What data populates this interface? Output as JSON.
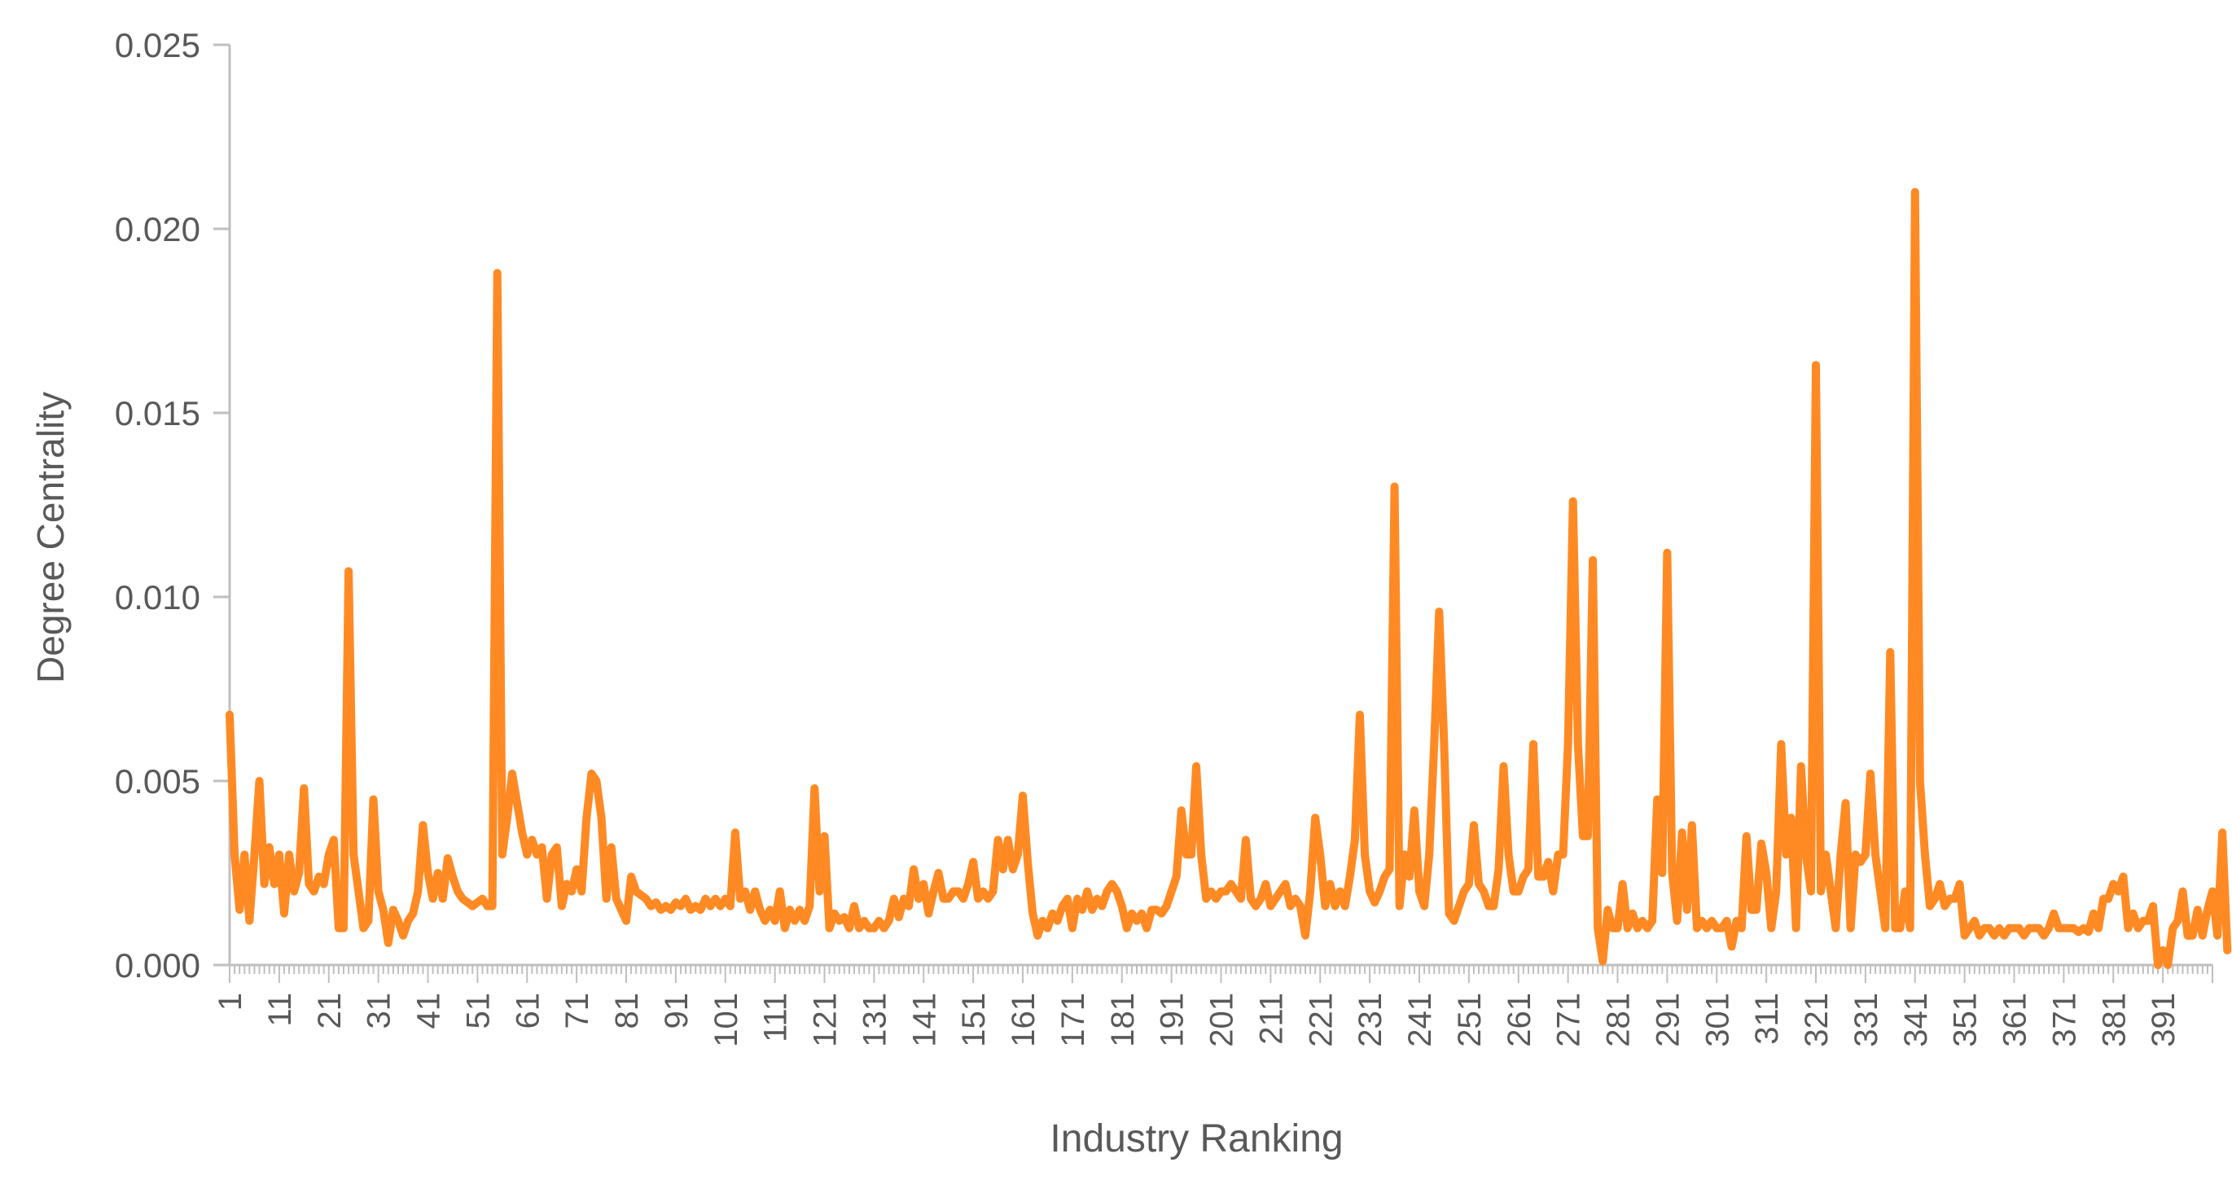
{
  "chart_data": {
    "type": "line",
    "title": "",
    "xlabel": "Industry Ranking",
    "ylabel": "Degree Centrality",
    "xlim": [
      1,
      401
    ],
    "ylim": [
      0,
      0.025
    ],
    "y_ticks": [
      "0.000",
      "0.005",
      "0.010",
      "0.015",
      "0.020",
      "0.025"
    ],
    "x_tick_step": 10,
    "grid": false,
    "legend": "none",
    "series_color": "#FF8A24",
    "axis_color": "#BFBFBF",
    "label_color": "#595959",
    "series": [
      {
        "values": [
          0.0068,
          0.003,
          0.0015,
          0.003,
          0.0012,
          0.003,
          0.005,
          0.0022,
          0.0032,
          0.0022,
          0.003,
          0.0014,
          0.003,
          0.002,
          0.0025,
          0.0048,
          0.0022,
          0.002,
          0.0024,
          0.0022,
          0.003,
          0.0034,
          0.001,
          0.001,
          0.0107,
          0.003,
          0.002,
          0.001,
          0.0012,
          0.0045,
          0.002,
          0.0015,
          0.0006,
          0.0015,
          0.0012,
          0.0008,
          0.0012,
          0.0014,
          0.002,
          0.0038,
          0.0025,
          0.0018,
          0.0025,
          0.0018,
          0.0029,
          0.0024,
          0.002,
          0.0018,
          0.0017,
          0.0016,
          0.0017,
          0.0018,
          0.0016,
          0.0016,
          0.0188,
          0.003,
          0.004,
          0.0052,
          0.0044,
          0.0036,
          0.003,
          0.0034,
          0.003,
          0.0032,
          0.0018,
          0.003,
          0.0032,
          0.0016,
          0.0022,
          0.002,
          0.0026,
          0.002,
          0.004,
          0.0052,
          0.005,
          0.004,
          0.0018,
          0.0032,
          0.0018,
          0.0015,
          0.0012,
          0.0024,
          0.002,
          0.0019,
          0.0018,
          0.0016,
          0.0017,
          0.0015,
          0.0016,
          0.0015,
          0.0017,
          0.0016,
          0.0018,
          0.0015,
          0.0016,
          0.0015,
          0.0018,
          0.0016,
          0.0018,
          0.0016,
          0.0018,
          0.0016,
          0.0036,
          0.0018,
          0.002,
          0.0015,
          0.002,
          0.0015,
          0.0012,
          0.0015,
          0.0012,
          0.002,
          0.001,
          0.0015,
          0.0012,
          0.0015,
          0.0012,
          0.0016,
          0.0048,
          0.002,
          0.0035,
          0.001,
          0.0014,
          0.0012,
          0.0013,
          0.001,
          0.0016,
          0.001,
          0.0012,
          0.001,
          0.001,
          0.0012,
          0.001,
          0.0012,
          0.0018,
          0.0013,
          0.0018,
          0.0016,
          0.0026,
          0.0018,
          0.0022,
          0.0014,
          0.002,
          0.0025,
          0.0018,
          0.0018,
          0.002,
          0.002,
          0.0018,
          0.0022,
          0.0028,
          0.0018,
          0.002,
          0.0018,
          0.002,
          0.0034,
          0.0026,
          0.0034,
          0.0026,
          0.003,
          0.0046,
          0.0028,
          0.0014,
          0.0008,
          0.0012,
          0.001,
          0.0014,
          0.0012,
          0.0016,
          0.0018,
          0.001,
          0.0018,
          0.0015,
          0.002,
          0.0015,
          0.0018,
          0.0016,
          0.002,
          0.0022,
          0.002,
          0.0016,
          0.001,
          0.0014,
          0.0012,
          0.0014,
          0.001,
          0.0015,
          0.0015,
          0.0014,
          0.0016,
          0.002,
          0.0024,
          0.0042,
          0.003,
          0.003,
          0.0054,
          0.003,
          0.0018,
          0.002,
          0.0018,
          0.002,
          0.002,
          0.0022,
          0.002,
          0.0018,
          0.0034,
          0.0018,
          0.0016,
          0.0018,
          0.0022,
          0.0016,
          0.0018,
          0.002,
          0.0022,
          0.0016,
          0.0018,
          0.0016,
          0.0008,
          0.002,
          0.004,
          0.003,
          0.0016,
          0.0022,
          0.0016,
          0.002,
          0.0016,
          0.0024,
          0.0034,
          0.0068,
          0.003,
          0.002,
          0.0017,
          0.002,
          0.0024,
          0.0026,
          0.013,
          0.0016,
          0.003,
          0.0024,
          0.0042,
          0.002,
          0.0016,
          0.003,
          0.006,
          0.0096,
          0.006,
          0.0014,
          0.0012,
          0.0016,
          0.002,
          0.0022,
          0.0038,
          0.0022,
          0.002,
          0.0016,
          0.0016,
          0.0026,
          0.0054,
          0.003,
          0.002,
          0.002,
          0.0024,
          0.0026,
          0.006,
          0.0024,
          0.0024,
          0.0028,
          0.002,
          0.003,
          0.003,
          0.006,
          0.0126,
          0.006,
          0.0035,
          0.0035,
          0.011,
          0.001,
          0.0001,
          0.0015,
          0.001,
          0.001,
          0.0022,
          0.001,
          0.0014,
          0.001,
          0.0012,
          0.001,
          0.0012,
          0.0045,
          0.0025,
          0.0112,
          0.0025,
          0.0012,
          0.0036,
          0.0015,
          0.0038,
          0.001,
          0.0012,
          0.001,
          0.0012,
          0.001,
          0.001,
          0.0012,
          0.0005,
          0.0012,
          0.001,
          0.0035,
          0.0015,
          0.0015,
          0.0033,
          0.0025,
          0.001,
          0.002,
          0.006,
          0.003,
          0.004,
          0.001,
          0.0054,
          0.003,
          0.002,
          0.0163,
          0.002,
          0.003,
          0.002,
          0.001,
          0.003,
          0.0044,
          0.001,
          0.003,
          0.0028,
          0.003,
          0.0052,
          0.003,
          0.002,
          0.001,
          0.0085,
          0.001,
          0.001,
          0.002,
          0.001,
          0.021,
          0.005,
          0.003,
          0.0016,
          0.0018,
          0.0022,
          0.0016,
          0.0018,
          0.0018,
          0.0022,
          0.0008,
          0.001,
          0.0012,
          0.0008,
          0.001,
          0.001,
          0.0008,
          0.001,
          0.0008,
          0.001,
          0.001,
          0.001,
          0.0008,
          0.001,
          0.001,
          0.001,
          0.0008,
          0.001,
          0.0014,
          0.001,
          0.001,
          0.001,
          0.001,
          0.0009,
          0.001,
          0.0009,
          0.0014,
          0.001,
          0.0018,
          0.0018,
          0.0022,
          0.002,
          0.0024,
          0.001,
          0.0014,
          0.001,
          0.0012,
          0.0012,
          0.0016,
          0.0,
          0.0004,
          0.0,
          0.001,
          0.0012,
          0.002,
          0.0008,
          0.0008,
          0.0015,
          0.0008,
          0.0015,
          0.002,
          0.0008,
          0.0036,
          0.0004
        ]
      }
    ]
  }
}
